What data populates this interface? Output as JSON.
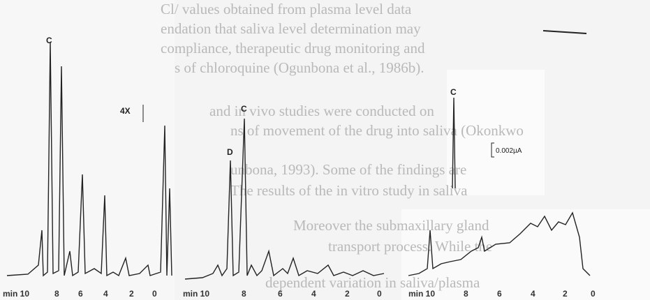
{
  "background_text": [
    "Cl/ values obtained from plasma level data",
    "endation that saliva level determination may",
    "compliance, therapeutic drug monitoring and",
    "s of chloroquine (Ogunbona et al., 1986b).",
    "and in vivo studies were conducted on",
    "ns of movement of the drug into saliva (Okonkwo",
    "unbona, 1993). Some of the findings are",
    "The results of the in vitro study in saliva",
    "Moreover the submaxillary gland",
    "transport process. While the",
    "dependent variation in saliva/plasma"
  ],
  "panels": [
    {
      "peaks": [
        "C",
        "4X"
      ],
      "axis_labels": [
        "min 10",
        "8",
        "6",
        "4",
        "2",
        "0"
      ]
    },
    {
      "peaks": [
        "C",
        "D"
      ],
      "axis_labels": [
        "min 10",
        "8",
        "6",
        "4",
        "2",
        "0"
      ]
    },
    {
      "peaks": [
        "C"
      ],
      "scale_label": "0.002µA"
    },
    {
      "axis_labels": [
        "min 10",
        "8",
        "6",
        "4",
        "2",
        "0"
      ]
    }
  ]
}
